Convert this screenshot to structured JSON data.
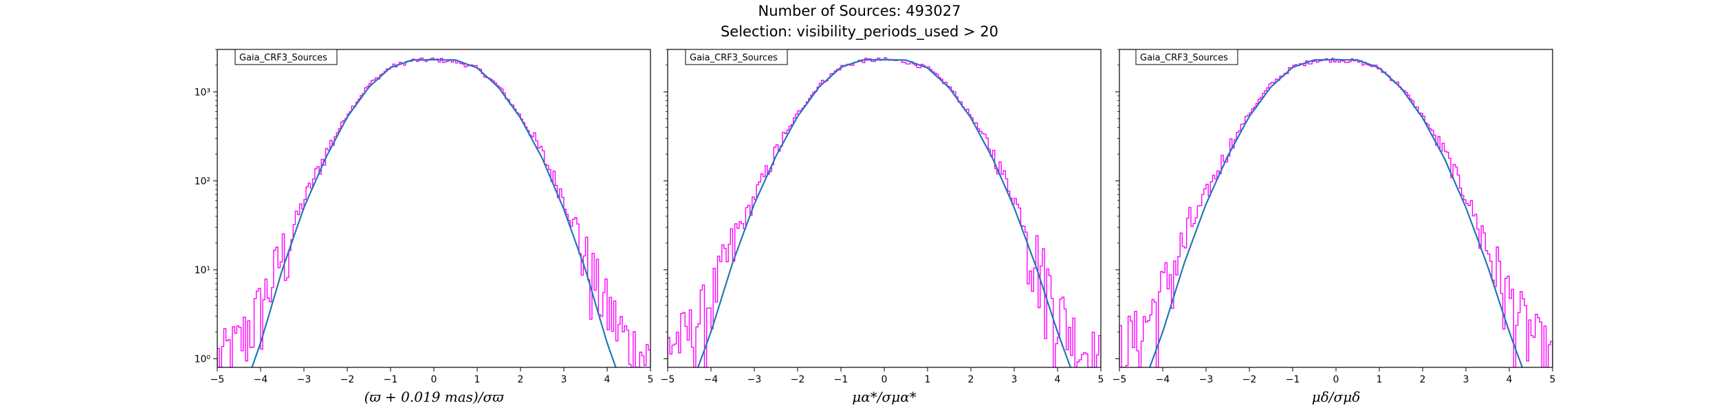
{
  "figure": {
    "title": "Number of Sources: 493027",
    "subtitle": "Selection: visibility_periods_used > 20"
  },
  "colors": {
    "histogram": "#ff00ff",
    "fit": "#1f77b4",
    "axes": "#000000"
  },
  "chart_data": [
    {
      "type": "line",
      "legend": "Gaia_CRF3_Sources",
      "legend_position": "top-left",
      "xlabel": "(ϖ + 0.019 mas)/σϖ",
      "xlim": [
        -5,
        5
      ],
      "ylim": [
        0.8,
        3000
      ],
      "yscale": "log",
      "xticks": [
        -5,
        -4,
        -3,
        -2,
        -1,
        0,
        1,
        2,
        3,
        4,
        5
      ],
      "yticks": [
        {
          "value": 1,
          "label": "10⁰"
        },
        {
          "value": 10,
          "label": "10¹"
        },
        {
          "value": 100,
          "label": "10²"
        },
        {
          "value": 1000,
          "label": "10³"
        }
      ],
      "series": [
        {
          "kind": "histogram",
          "x": [
            -5,
            -4.5,
            -4,
            -3.5,
            -3,
            -2.5,
            -2,
            -1.5,
            -1,
            -0.5,
            0,
            0.5,
            1,
            1.5,
            2,
            2.5,
            3,
            3.5,
            4,
            4.5,
            5
          ],
          "y": [
            1,
            1.5,
            4,
            15,
            60,
            200,
            560,
            1200,
            1900,
            2250,
            2300,
            2200,
            1850,
            1150,
            530,
            200,
            65,
            14,
            4,
            1.5,
            1
          ]
        },
        {
          "kind": "fit",
          "x": [
            -4.2,
            -4,
            -3.5,
            -3,
            -2.5,
            -2,
            -1.5,
            -1,
            -0.5,
            0,
            0.5,
            1,
            1.5,
            2,
            2.5,
            3,
            3.5,
            4,
            4.2
          ],
          "y": [
            0.8,
            1.5,
            10,
            50,
            180,
            520,
            1130,
            1880,
            2280,
            2300,
            2280,
            1860,
            1110,
            510,
            180,
            48,
            10,
            1.5,
            0.8
          ]
        }
      ]
    },
    {
      "type": "line",
      "legend": "Gaia_CRF3_Sources",
      "legend_position": "top-left",
      "xlabel": "μα*/σμα*",
      "xlim": [
        -5,
        5
      ],
      "ylim": [
        0.8,
        3000
      ],
      "yscale": "log",
      "xticks": [
        -5,
        -4,
        -3,
        -2,
        -1,
        0,
        1,
        2,
        3,
        4,
        5
      ],
      "yticks": [
        {
          "value": 1,
          "label": "10⁰"
        },
        {
          "value": 10,
          "label": "10¹"
        },
        {
          "value": 100,
          "label": "10²"
        },
        {
          "value": 1000,
          "label": "10³"
        }
      ],
      "series": [
        {
          "kind": "histogram",
          "x": [
            -5,
            -4.5,
            -4,
            -3.5,
            -3,
            -2.5,
            -2,
            -1.5,
            -1,
            -0.5,
            0,
            0.5,
            1,
            1.5,
            2,
            2.5,
            3,
            3.5,
            4,
            4.5,
            5
          ],
          "y": [
            1.5,
            2,
            5,
            18,
            65,
            210,
            570,
            1200,
            1900,
            2250,
            2300,
            2200,
            1850,
            1150,
            540,
            210,
            65,
            16,
            4,
            1.5,
            1
          ]
        },
        {
          "kind": "fit",
          "x": [
            -4.3,
            -4,
            -3.5,
            -3,
            -2.5,
            -2,
            -1.5,
            -1,
            -0.5,
            0,
            0.5,
            1,
            1.5,
            2,
            2.5,
            3,
            3.5,
            4,
            4.3
          ],
          "y": [
            0.8,
            2,
            12,
            55,
            190,
            530,
            1140,
            1890,
            2290,
            2300,
            2280,
            1860,
            1110,
            510,
            180,
            50,
            11,
            2,
            0.8
          ]
        }
      ]
    },
    {
      "type": "line",
      "legend": "Gaia_CRF3_Sources",
      "legend_position": "top-left",
      "xlabel": "μδ/σμδ",
      "xlim": [
        -5,
        5
      ],
      "ylim": [
        0.8,
        3000
      ],
      "yscale": "log",
      "xticks": [
        -5,
        -4,
        -3,
        -2,
        -1,
        0,
        1,
        2,
        3,
        4,
        5
      ],
      "yticks": [
        {
          "value": 1,
          "label": "10⁰"
        },
        {
          "value": 10,
          "label": "10¹"
        },
        {
          "value": 100,
          "label": "10²"
        },
        {
          "value": 1000,
          "label": "10³"
        }
      ],
      "series": [
        {
          "kind": "histogram",
          "x": [
            -5,
            -4.5,
            -4,
            -3.5,
            -3,
            -2.5,
            -2,
            -1.5,
            -1,
            -0.5,
            0,
            0.5,
            1,
            1.5,
            2,
            2.5,
            3,
            3.5,
            4,
            4.5,
            5
          ],
          "y": [
            1.5,
            2,
            6,
            20,
            70,
            220,
            580,
            1210,
            1900,
            2250,
            2300,
            2200,
            1850,
            1150,
            540,
            210,
            70,
            18,
            5,
            2,
            1
          ]
        },
        {
          "kind": "fit",
          "x": [
            -4.3,
            -4,
            -3.5,
            -3,
            -2.5,
            -2,
            -1.5,
            -1,
            -0.5,
            0,
            0.5,
            1,
            1.5,
            2,
            2.5,
            3,
            3.5,
            4,
            4.3
          ],
          "y": [
            0.8,
            2,
            12,
            55,
            190,
            530,
            1140,
            1890,
            2290,
            2300,
            2280,
            1860,
            1110,
            510,
            180,
            50,
            11,
            2,
            0.8
          ]
        }
      ]
    }
  ]
}
